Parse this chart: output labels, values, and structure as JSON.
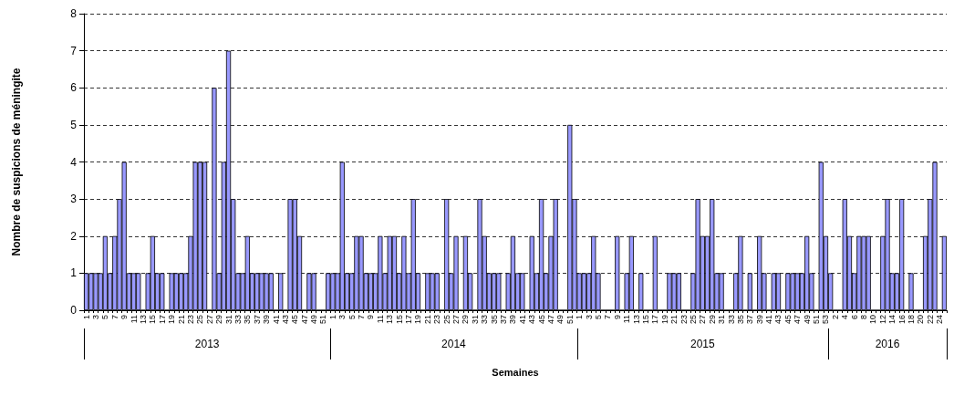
{
  "chart_data": {
    "type": "bar",
    "xlabel": "Semaines",
    "ylabel": "Nombre de suspicions de méningite",
    "annotations": [
      "2013",
      "2014",
      "2015",
      "2016"
    ],
    "categories": [
      "1",
      null,
      "3",
      null,
      "5",
      null,
      "7",
      null,
      "9",
      null,
      "11",
      null,
      "13",
      null,
      "15",
      null,
      "17",
      null,
      "19",
      null,
      "21",
      null,
      "23",
      null,
      "25",
      null,
      "27",
      null,
      "29",
      null,
      "31",
      null,
      "33",
      null,
      "35",
      null,
      "37",
      null,
      "39",
      null,
      "41",
      null,
      "43",
      null,
      "45",
      null,
      "47",
      null,
      "49",
      null,
      "51",
      null,
      "1",
      null,
      "3",
      null,
      "5",
      null,
      "7",
      null,
      "9",
      null,
      "11",
      null,
      "13",
      null,
      "15",
      null,
      "17",
      null,
      "19",
      null,
      "21",
      null,
      "23",
      null,
      "25",
      null,
      "27",
      null,
      "29",
      null,
      "31",
      null,
      "33",
      null,
      "35",
      null,
      "37",
      null,
      "39",
      null,
      "41",
      null,
      "43",
      null,
      "45",
      null,
      "47",
      null,
      "49",
      null,
      "51",
      null,
      "1",
      null,
      "3",
      null,
      "5",
      null,
      "7",
      null,
      "9",
      null,
      "11",
      null,
      "13",
      null,
      "15",
      null,
      "17",
      null,
      "19",
      null,
      "21",
      null,
      "23",
      null,
      "25",
      null,
      "27",
      null,
      "29",
      null,
      "31",
      null,
      "33",
      null,
      "35",
      null,
      "37",
      null,
      "39",
      null,
      "41",
      null,
      "43",
      null,
      "45",
      null,
      "47",
      null,
      "49",
      null,
      "51",
      null,
      "53",
      null,
      "2",
      null,
      "4",
      null,
      "6",
      null,
      "8",
      null,
      "10",
      null,
      "12",
      null,
      "14",
      null,
      "16",
      null,
      "18",
      null,
      "20",
      null,
      "22",
      null,
      "24",
      null
    ],
    "values": [
      1,
      1,
      1,
      1,
      2,
      1,
      2,
      3,
      4,
      1,
      1,
      1,
      0,
      1,
      2,
      1,
      1,
      0,
      1,
      1,
      1,
      1,
      2,
      4,
      4,
      4,
      0,
      6,
      1,
      4,
      7,
      3,
      1,
      1,
      2,
      1,
      1,
      1,
      1,
      1,
      0,
      1,
      0,
      3,
      3,
      2,
      0,
      1,
      1,
      0,
      0,
      1,
      1,
      1,
      4,
      1,
      1,
      2,
      2,
      1,
      1,
      1,
      2,
      1,
      2,
      2,
      1,
      2,
      1,
      3,
      1,
      0,
      1,
      1,
      1,
      0,
      3,
      1,
      2,
      0,
      2,
      1,
      0,
      3,
      2,
      1,
      1,
      1,
      0,
      1,
      2,
      1,
      1,
      0,
      2,
      1,
      3,
      1,
      2,
      3,
      0,
      0,
      5,
      3,
      1,
      1,
      1,
      2,
      1,
      0,
      0,
      0,
      2,
      0,
      1,
      2,
      0,
      1,
      0,
      0,
      2,
      0,
      0,
      1,
      1,
      1,
      0,
      0,
      1,
      3,
      2,
      2,
      3,
      1,
      1,
      0,
      0,
      1,
      2,
      0,
      1,
      0,
      2,
      1,
      0,
      1,
      1,
      0,
      1,
      1,
      1,
      1,
      2,
      1,
      0,
      4,
      2,
      1,
      0,
      0,
      3,
      2,
      1,
      2,
      2,
      2,
      0,
      0,
      2,
      3,
      1,
      1,
      3,
      0,
      1,
      0,
      0,
      2,
      3,
      4,
      0,
      2
    ],
    "color": "#9999ff",
    "ylim": [
      0,
      8
    ],
    "yticks": [
      0,
      1,
      2,
      3,
      4,
      5,
      6,
      7,
      8
    ],
    "grid": "y"
  }
}
